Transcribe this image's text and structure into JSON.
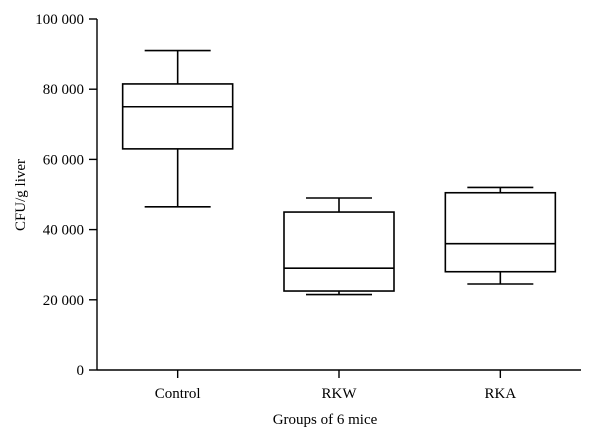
{
  "chart_data": {
    "type": "box",
    "title": "",
    "xlabel": "Groups of 6 mice",
    "ylabel": "CFU/g liver",
    "ylim": [
      0,
      100000
    ],
    "yticks": [
      0,
      20000,
      40000,
      60000,
      80000,
      100000
    ],
    "ytick_labels": [
      "0",
      "20 000",
      "40 000",
      "60 000",
      "80 000",
      "100 000"
    ],
    "grid": false,
    "categories": [
      "Control",
      "RKW",
      "RKA"
    ],
    "boxes": [
      {
        "category": "Control",
        "min": 46500,
        "q1": 63000,
        "median": 75000,
        "q3": 81500,
        "max": 91000
      },
      {
        "category": "RKW",
        "min": 21500,
        "q1": 22500,
        "median": 29000,
        "q3": 45000,
        "max": 49000
      },
      {
        "category": "RKA",
        "min": 24500,
        "q1": 28000,
        "median": 36000,
        "q3": 50500,
        "max": 52000
      }
    ]
  }
}
